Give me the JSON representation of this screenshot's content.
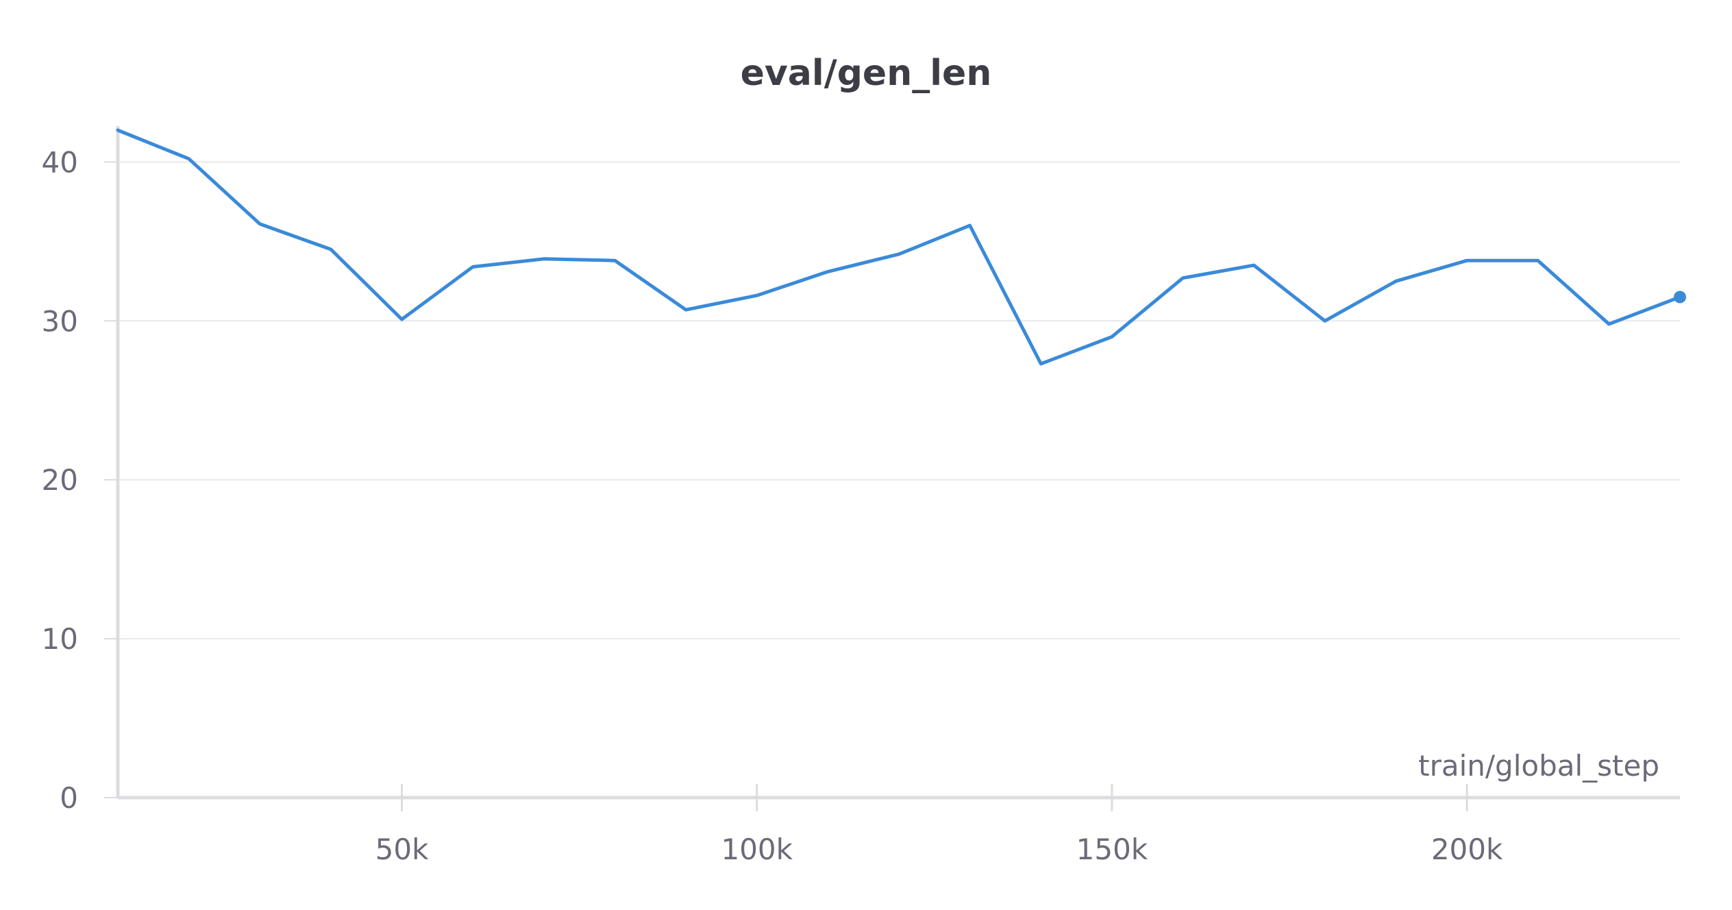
{
  "chart_data": {
    "type": "line",
    "title": "eval/gen_len",
    "xlabel": "train/global_step",
    "ylabel": "",
    "xlim": [
      10000,
      230000
    ],
    "ylim": [
      0,
      42
    ],
    "x_ticks": [
      50000,
      100000,
      150000,
      200000
    ],
    "x_tick_labels": [
      "50k",
      "100k",
      "150k",
      "200k"
    ],
    "y_ticks": [
      0,
      10,
      20,
      30,
      40
    ],
    "y_tick_labels": [
      "0",
      "10",
      "20",
      "30",
      "40"
    ],
    "grid": true,
    "legend": "none",
    "series": [
      {
        "color": "#3b8ad9",
        "x": [
          10000,
          20000,
          30000,
          40000,
          50000,
          60000,
          70000,
          80000,
          90000,
          100000,
          110000,
          120000,
          130000,
          140000,
          150000,
          160000,
          170000,
          180000,
          190000,
          200000,
          210000,
          220000,
          230000
        ],
        "y": [
          42.0,
          40.2,
          36.1,
          34.5,
          30.1,
          33.4,
          33.9,
          33.8,
          30.7,
          31.6,
          33.1,
          34.2,
          36.0,
          27.3,
          29.0,
          32.7,
          33.5,
          30.0,
          32.5,
          33.8,
          33.8,
          29.8,
          31.5
        ]
      }
    ]
  }
}
